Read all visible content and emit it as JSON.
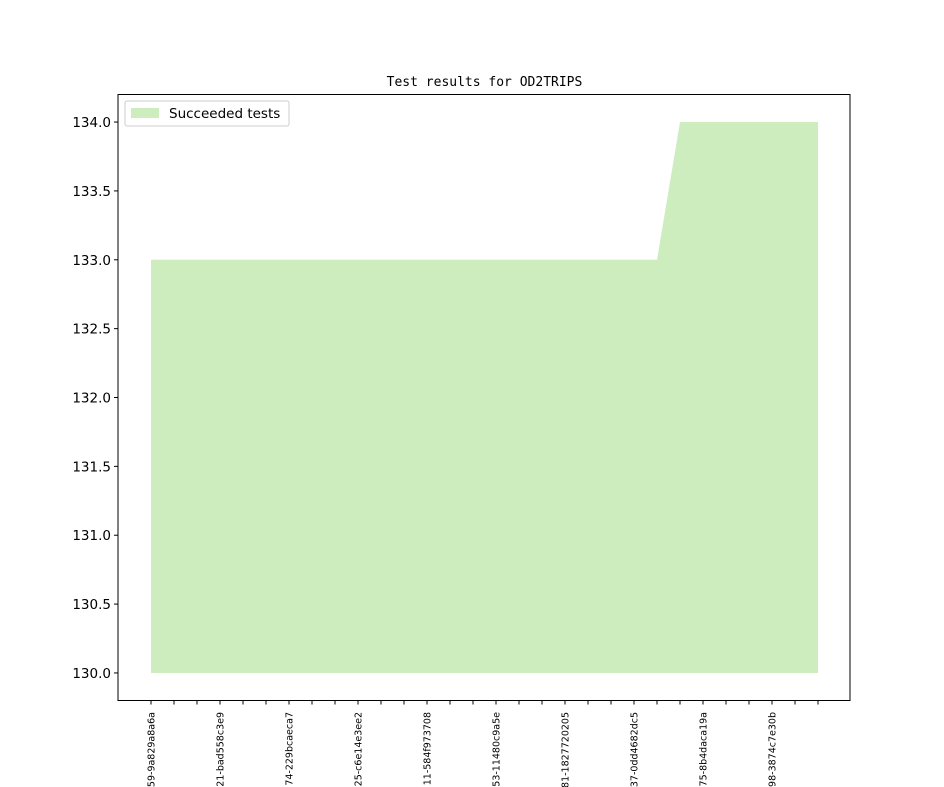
{
  "chart_data": {
    "type": "area",
    "title": "Test results for OD2TRIPS",
    "xlabel": "",
    "ylabel": "",
    "ylim": [
      129.8,
      134.2
    ],
    "yticks": [
      130.0,
      130.5,
      131.0,
      131.5,
      132.0,
      132.5,
      133.0,
      133.5,
      134.0
    ],
    "ytick_labels": [
      "130.0",
      "130.5",
      "131.0",
      "131.5",
      "132.0",
      "132.5",
      "133.0",
      "133.5",
      "134.0"
    ],
    "x_count": 30,
    "xtick_labels": [
      {
        "index": 0,
        "label": "59-9a829a8a6a"
      },
      {
        "index": 3,
        "label": "21-bad558c3e9"
      },
      {
        "index": 6,
        "label": "74-229bcaeca7"
      },
      {
        "index": 9,
        "label": "25-c6e14e3ee2"
      },
      {
        "index": 12,
        "label": "11-584f973708"
      },
      {
        "index": 15,
        "label": "53-11480c9a5e"
      },
      {
        "index": 18,
        "label": "81-1827720205"
      },
      {
        "index": 21,
        "label": "37-0dd4682dc5"
      },
      {
        "index": 24,
        "label": "75-8b4daca19a"
      },
      {
        "index": 27,
        "label": "98-3874c7e30b"
      }
    ],
    "series": [
      {
        "name": "Succeeded tests",
        "color": "#ceedbf",
        "baseline": 130,
        "values": [
          133,
          133,
          133,
          133,
          133,
          133,
          133,
          133,
          133,
          133,
          133,
          133,
          133,
          133,
          133,
          133,
          133,
          133,
          133,
          133,
          133,
          133,
          133,
          134,
          134,
          134,
          134,
          134,
          134,
          134
        ]
      }
    ],
    "legend": {
      "position": "top-left",
      "entries": [
        "Succeeded tests"
      ]
    },
    "grid": false
  }
}
